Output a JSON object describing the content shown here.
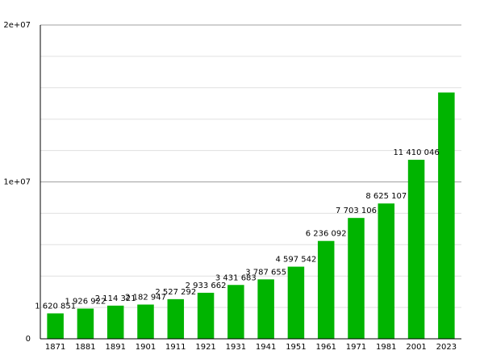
{
  "chart_data": {
    "type": "bar",
    "categories": [
      "1871",
      "1881",
      "1891",
      "1901",
      "1911",
      "1921",
      "1931",
      "1941",
      "1951",
      "1961",
      "1971",
      "1981",
      "2001",
      "2023"
    ],
    "values": [
      1620851,
      1926922,
      2114321,
      2182947,
      2527292,
      2933662,
      3431683,
      3787655,
      4597542,
      6236092,
      7703106,
      8625107,
      11410046,
      15700000
    ],
    "data_labels": [
      "1 620 851",
      "1 926 922",
      "2 114 321",
      "2 182 947",
      "2 527 292",
      "2 933 662",
      "3 431 683",
      "3 787 655",
      "4 597 542",
      "6 236 092",
      "7 703 106",
      "8 625 107",
      "11 410 046",
      ""
    ],
    "y_ticks": [
      {
        "value": 0,
        "label": "0"
      },
      {
        "value": 10000000,
        "label": "1e+07"
      },
      {
        "value": 20000000,
        "label": "2e+07"
      }
    ],
    "ylim": [
      0,
      20000000
    ],
    "minor_grid_step": 2000000,
    "grid": true,
    "bar_color": "#00b400",
    "grid_color": "#e0e0e0",
    "major_grid_color": "#a0a0a0"
  }
}
